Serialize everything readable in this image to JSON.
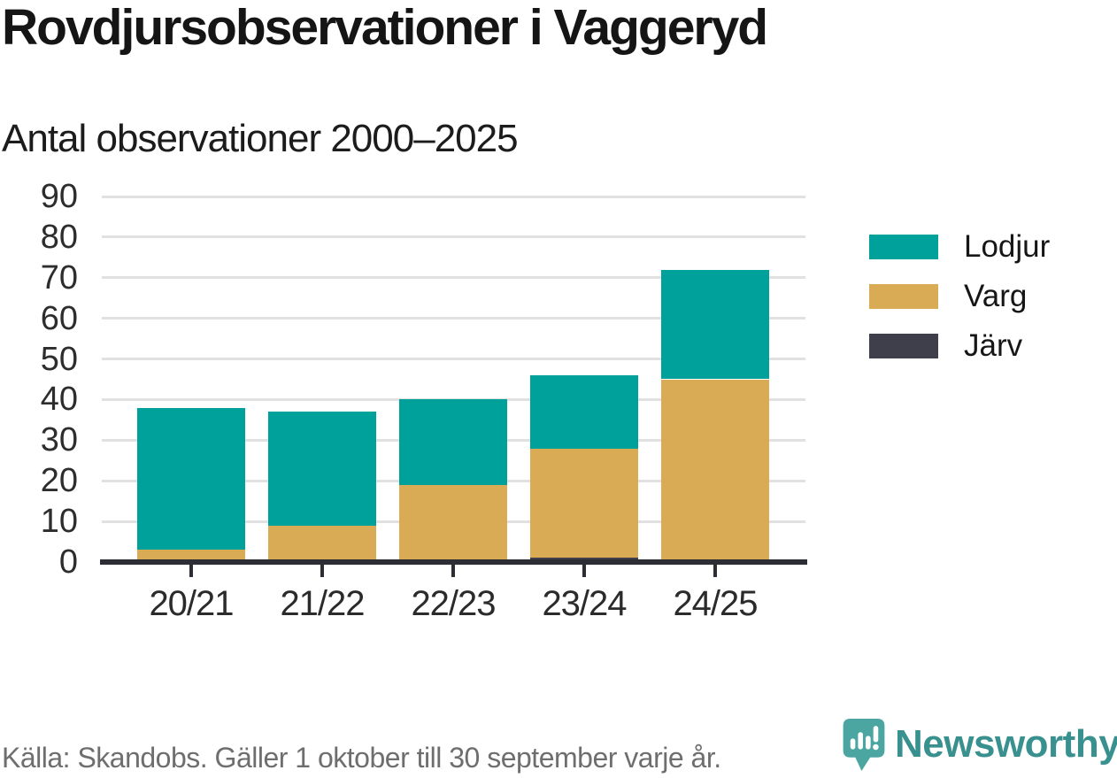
{
  "header": {
    "title": "Rovdjursobservationer i Vaggeryd",
    "subtitle": "Antal observationer 2000–2025"
  },
  "chart_data": {
    "type": "bar",
    "stacked": true,
    "title": "Rovdjursobservationer i Vaggeryd",
    "subtitle": "Antal observationer 2000–2025",
    "categories": [
      "20/21",
      "21/22",
      "22/23",
      "23/24",
      "24/25"
    ],
    "series": [
      {
        "name": "Lodjur",
        "color": "#00a19a",
        "values": [
          35,
          28,
          21,
          18,
          27
        ]
      },
      {
        "name": "Varg",
        "color": "#d9ab55",
        "values": [
          3,
          9,
          19,
          27,
          45
        ]
      },
      {
        "name": "Järv",
        "color": "#3f3f4c",
        "values": [
          0,
          0,
          0,
          1,
          0
        ]
      }
    ],
    "totals": [
      38,
      37,
      40,
      46,
      72
    ],
    "y_axis": {
      "min": 0,
      "max": 90,
      "tick_step": 10,
      "ticks": [
        0,
        10,
        20,
        30,
        40,
        50,
        60,
        70,
        80,
        90
      ]
    },
    "xlabel": "",
    "ylabel": "",
    "grid": true,
    "legend_position": "right",
    "stack_order_bottom_to_top": [
      "Järv",
      "Varg",
      "Lodjur"
    ]
  },
  "colors": {
    "lodjur": "#00a19a",
    "varg": "#d9ab55",
    "jarv": "#3f3f4c",
    "axis": "#2d2d35",
    "gridline": "#e1e1e1",
    "brand_teal": "#39918f"
  },
  "footer": {
    "source": "Källa: Skandobs. Gäller 1 oktober till 30 september varje år.",
    "brand": "Newsworthy"
  }
}
